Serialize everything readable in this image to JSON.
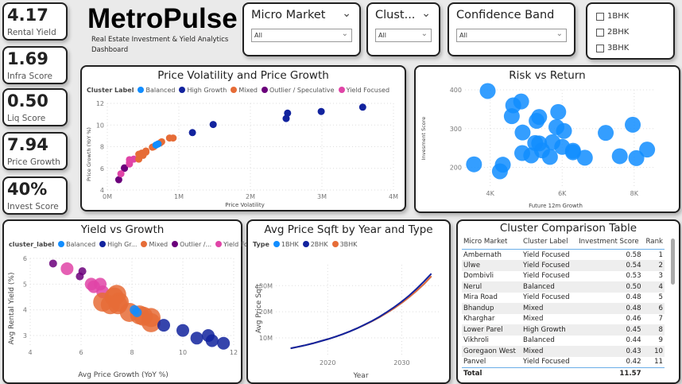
{
  "kpis": [
    {
      "value": "4.17",
      "label": "Rental Yield"
    },
    {
      "value": "1.69",
      "label": "Infra Score"
    },
    {
      "value": "0.50",
      "label": "Liq Score"
    },
    {
      "value": "7.94",
      "label": "Price Growth"
    },
    {
      "value": "40%",
      "label": "Invest Score"
    }
  ],
  "header": {
    "title": "MetroPulse",
    "subtitle": "Real Estate Investment & Yield Analytics Dashboard"
  },
  "slicers": [
    {
      "title": "Micro Market",
      "value": "All"
    },
    {
      "title": "Clust...",
      "value": "All"
    },
    {
      "title": "Confidence Band",
      "value": "All"
    }
  ],
  "bhk_filter": [
    {
      "label": "1BHK",
      "checked": false
    },
    {
      "label": "2BHK",
      "checked": false
    },
    {
      "label": "3BHK",
      "checked": false
    }
  ],
  "colors": {
    "Balanced": "#118dff",
    "High Growth": "#12239e",
    "Mixed": "#e66c37",
    "Outlier / Speculative": "#6b007b",
    "Yield Focused": "#e044a7",
    "1BHK": "#118dff",
    "2BHK": "#12239e",
    "3BHK": "#e66c37"
  },
  "chart_data": [
    {
      "type": "scatter",
      "title": "Price Volatility and Price Growth",
      "legend_title": "Cluster Label",
      "legend": [
        "Balanced",
        "High Growth",
        "Mixed",
        "Outlier / Speculative",
        "Yield Focused"
      ],
      "xlabel": "Price Volatility",
      "ylabel": "Price Growth (YoY %)",
      "xlim": [
        0,
        4000000
      ],
      "ylim": [
        4,
        12
      ],
      "xticks": [
        "0M",
        "1M",
        "2M",
        "3M",
        "4M"
      ],
      "yticks": [
        "4",
        "6",
        "8",
        "10",
        "12"
      ],
      "grid": true,
      "series": [
        {
          "name": "Outlier / Speculative",
          "points": [
            [
              160000,
              4.95
            ],
            [
              240000,
              6.0
            ],
            [
              240000,
              6.05
            ]
          ]
        },
        {
          "name": "Yield Focused",
          "points": [
            [
              190000,
              5.5
            ],
            [
              310000,
              6.4
            ],
            [
              310000,
              6.55
            ],
            [
              310000,
              6.8
            ],
            [
              370000,
              6.85
            ]
          ]
        },
        {
          "name": "Mixed",
          "points": [
            [
              440000,
              6.85
            ],
            [
              440000,
              7.3
            ],
            [
              480000,
              7.4
            ],
            [
              500000,
              7.2
            ],
            [
              520000,
              7.45
            ],
            [
              540000,
              7.6
            ],
            [
              540000,
              7.5
            ],
            [
              630000,
              7.95
            ],
            [
              650000,
              8.0
            ],
            [
              740000,
              8.35
            ],
            [
              760000,
              8.45
            ],
            [
              870000,
              8.8
            ],
            [
              920000,
              8.8
            ]
          ]
        },
        {
          "name": "Balanced",
          "points": [
            [
              680000,
              8.15
            ],
            [
              710000,
              8.25
            ]
          ]
        },
        {
          "name": "High Growth",
          "points": [
            [
              1190000,
              9.3
            ],
            [
              1480000,
              10.05
            ],
            [
              2500000,
              10.6
            ],
            [
              2520000,
              11.1
            ],
            [
              2990000,
              11.25
            ],
            [
              3570000,
              11.65
            ]
          ]
        }
      ]
    },
    {
      "type": "scatter",
      "title": "Risk vs Return",
      "xlabel": "Future 12m Growth",
      "ylabel": "Invesment Score",
      "xlim": [
        3300,
        8600
      ],
      "ylim": [
        150,
        400
      ],
      "xticks": [
        "4K",
        "6K",
        "8K"
      ],
      "yticks": [
        "200",
        "300",
        "400"
      ],
      "grid": true,
      "series": [
        {
          "points": [
            [
              3930,
              397
            ],
            [
              4860,
              370
            ],
            [
              4640,
              360
            ],
            [
              4600,
              332
            ],
            [
              4900,
              290
            ],
            [
              5360,
              330
            ],
            [
              5290,
              320
            ],
            [
              5890,
              343
            ],
            [
              5840,
              304
            ],
            [
              6050,
              294
            ],
            [
              7210,
              289
            ],
            [
              7960,
              310
            ],
            [
              5250,
              263
            ],
            [
              5360,
              262
            ],
            [
              5440,
              244
            ],
            [
              5730,
              265
            ],
            [
              6000,
              253
            ],
            [
              6300,
              243
            ],
            [
              6300,
              239
            ],
            [
              4890,
              237
            ],
            [
              5140,
              231
            ],
            [
              5660,
              227
            ],
            [
              6630,
              225
            ],
            [
              7600,
              229
            ],
            [
              8060,
              224
            ],
            [
              8360,
              246
            ],
            [
              3550,
              208
            ],
            [
              4350,
              207
            ],
            [
              4270,
              190
            ]
          ]
        }
      ]
    },
    {
      "type": "scatter",
      "title": "Yield vs Growth",
      "legend_title": "cluster_label",
      "legend": [
        "Balanced",
        "High Gr...",
        "Mixed",
        "Outlier /...",
        "Yield Fo..."
      ],
      "xlabel": "Avg Price Growth (YoY %)",
      "ylabel": "Avg Rental Yield (%)",
      "xlim": [
        4,
        12
      ],
      "ylim": [
        2.6,
        6
      ],
      "xticks": [
        "4",
        "6",
        "8",
        "10",
        "12"
      ],
      "yticks": [
        "3",
        "4",
        "5",
        "6"
      ],
      "grid": true,
      "series": [
        {
          "name": "Outlier / Speculative",
          "points": [
            [
              4.9,
              5.8
            ],
            [
              6.05,
              5.5
            ],
            [
              5.95,
              5.3
            ]
          ]
        },
        {
          "name": "Yield Focused",
          "points": [
            [
              5.45,
              5.6
            ],
            [
              6.4,
              5.0
            ],
            [
              6.5,
              4.9
            ],
            [
              6.75,
              5.0
            ],
            [
              6.85,
              4.7
            ]
          ]
        },
        {
          "name": "Mixed",
          "points": [
            [
              6.85,
              4.3
            ],
            [
              7.15,
              4.2
            ],
            [
              7.3,
              4.5
            ],
            [
              7.4,
              4.6
            ],
            [
              7.5,
              4.3
            ],
            [
              7.45,
              4.2
            ],
            [
              7.9,
              3.9
            ],
            [
              8.3,
              3.8
            ],
            [
              8.45,
              3.75
            ],
            [
              8.75,
              3.7
            ],
            [
              8.75,
              3.5
            ]
          ]
        },
        {
          "name": "Balanced",
          "points": [
            [
              8.1,
              4.0
            ],
            [
              8.2,
              3.9
            ]
          ]
        },
        {
          "name": "High Growth",
          "points": [
            [
              9.25,
              3.4
            ],
            [
              10.0,
              3.2
            ],
            [
              10.55,
              2.9
            ],
            [
              11.0,
              3.0
            ],
            [
              11.15,
              2.8
            ],
            [
              11.6,
              2.7
            ]
          ]
        }
      ]
    },
    {
      "type": "line",
      "title": "Avg Price Sqft by Year and Type",
      "legend_title": "Type",
      "legend": [
        "1BHK",
        "2BHK",
        "3BHK"
      ],
      "xlabel": "Year",
      "ylabel": "Avg Price Sqft",
      "xlim": [
        2013,
        2035
      ],
      "ylim": [
        3000000,
        38000000
      ],
      "xticks": [
        "2020",
        "2030"
      ],
      "yticks": [
        "10M",
        "20M",
        "30M"
      ],
      "grid": true,
      "x": [
        2015,
        2016,
        2017,
        2018,
        2019,
        2020,
        2021,
        2022,
        2023,
        2024,
        2025,
        2026,
        2027,
        2028,
        2029,
        2030,
        2031,
        2032,
        2033,
        2034
      ],
      "series": [
        {
          "name": "1BHK",
          "values": [
            6.0,
            6.6,
            7.2,
            7.9,
            8.7,
            9.5,
            10.4,
            11.4,
            12.5,
            13.7,
            15.0,
            16.4,
            17.9,
            19.6,
            21.4,
            23.4,
            25.6,
            28.0,
            30.6,
            33.6
          ]
        },
        {
          "name": "2BHK",
          "values": [
            6.0,
            6.6,
            7.2,
            7.9,
            8.7,
            9.5,
            10.4,
            11.4,
            12.5,
            13.7,
            15.1,
            16.5,
            18.1,
            19.9,
            21.8,
            23.9,
            26.2,
            28.8,
            31.6,
            34.6
          ]
        },
        {
          "name": "3BHK",
          "values": [
            6.0,
            6.6,
            7.2,
            7.9,
            8.7,
            9.5,
            10.4,
            11.4,
            12.5,
            13.7,
            15.0,
            16.4,
            17.9,
            19.6,
            21.4,
            23.4,
            25.6,
            28.0,
            30.6,
            33.6
          ]
        }
      ],
      "value_unit": "M"
    }
  ],
  "table": {
    "title": "Cluster Comparison Table",
    "columns": [
      "Micro Market",
      "Cluster Label",
      "Investment Score",
      "Rank"
    ],
    "sort_column": "Investment Score",
    "rows": [
      [
        "Ambernath",
        "Yield Focused",
        "0.58",
        "1"
      ],
      [
        "Ulwe",
        "Yield Focused",
        "0.54",
        "2"
      ],
      [
        "Dombivli",
        "Yield Focused",
        "0.53",
        "3"
      ],
      [
        "Nerul",
        "Balanced",
        "0.50",
        "4"
      ],
      [
        "Mira Road",
        "Yield Focused",
        "0.48",
        "5"
      ],
      [
        "Bhandup",
        "Mixed",
        "0.48",
        "6"
      ],
      [
        "Kharghar",
        "Mixed",
        "0.46",
        "7"
      ],
      [
        "Lower Parel",
        "High Growth",
        "0.45",
        "8"
      ],
      [
        "Vikhroli",
        "Balanced",
        "0.44",
        "9"
      ],
      [
        "Goregaon West",
        "Mixed",
        "0.43",
        "10"
      ],
      [
        "Panvel",
        "Yield Focused",
        "0.42",
        "11"
      ]
    ],
    "total_label": "Total",
    "total_value": "11.57"
  }
}
